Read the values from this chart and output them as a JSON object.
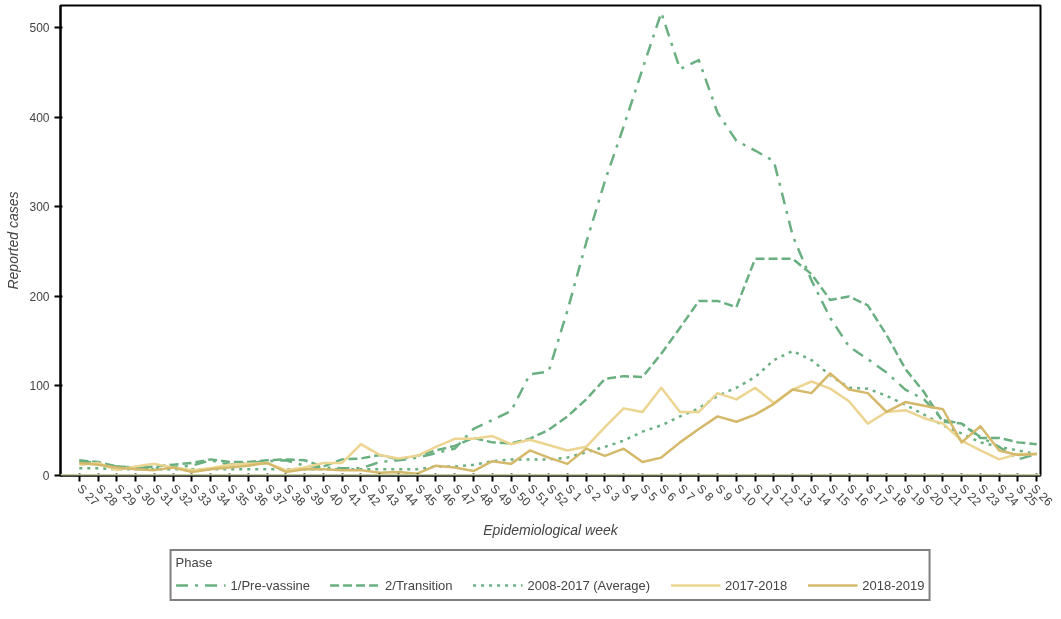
{
  "chart_data": {
    "type": "line",
    "xlabel": "Epidemiological week",
    "ylabel": "Reported cases",
    "legend_title": "Phase",
    "legend": "bottom",
    "grid": false,
    "marker": "none",
    "categories": [
      "S 27",
      "S 28",
      "S 29",
      "S 30",
      "S 31",
      "S 32",
      "S 33",
      "S 34",
      "S 35",
      "S 36",
      "S 37",
      "S 38",
      "S 39",
      "S 40",
      "S 41",
      "S 42",
      "S 43",
      "S 44",
      "S 45",
      "S 46",
      "S 47",
      "S 48",
      "S 49",
      "S 50",
      "S 51",
      "S 52",
      "S 1",
      "S 2",
      "S 3",
      "S 4",
      "S 5",
      "S 6",
      "S 7",
      "S 8",
      "S 9",
      "S 10",
      "S 11",
      "S 12",
      "S 13",
      "S 14",
      "S 15",
      "S 16",
      "S 17",
      "S 18",
      "S 19",
      "S 20",
      "S 21",
      "S 22",
      "S 23",
      "S 24",
      "S 25",
      "S 26"
    ],
    "ylim": [
      0,
      525
    ],
    "yticks": [
      0,
      100,
      200,
      300,
      400,
      500
    ],
    "ref_lines": [
      {
        "axis": "y",
        "value": 0,
        "label": null,
        "color": "#c5cfa4"
      }
    ],
    "series": [
      {
        "name": "1/Pre-vassine",
        "color": "#6aaf80",
        "line_style": "dashdot",
        "values": [
          16,
          14,
          10,
          9,
          8,
          9,
          11,
          17,
          12,
          14,
          16,
          17,
          11,
          9,
          8,
          8,
          15,
          17,
          20,
          25,
          30,
          52,
          62,
          72,
          113,
          116,
          184,
          260,
          329,
          390,
          454,
          517,
          454,
          464,
          405,
          374,
          363,
          351,
          268,
          218,
          176,
          144,
          130,
          115,
          96,
          85,
          62,
          58,
          43,
          32,
          18,
          24
        ]
      },
      {
        "name": "2/Transition",
        "color": "#6aaf80",
        "line_style": "dashed",
        "values": [
          17,
          15,
          10,
          9,
          10,
          12,
          14,
          18,
          15,
          15,
          17,
          18,
          17,
          10,
          18,
          19,
          23,
          18,
          22,
          28,
          33,
          42,
          37,
          36,
          41,
          51,
          66,
          85,
          108,
          111,
          110,
          136,
          165,
          195,
          195,
          188,
          242,
          242,
          242,
          225,
          196,
          200,
          190,
          157,
          119,
          93,
          60,
          58,
          42,
          42,
          37,
          35
        ]
      },
      {
        "name": "2008-2017 (Average)",
        "color": "#6aaf80",
        "line_style": "dotted",
        "values": [
          8,
          8,
          7,
          7,
          7,
          7,
          7,
          7,
          7,
          7,
          7,
          7,
          7,
          7,
          7,
          7,
          7,
          7,
          7,
          10,
          10,
          12,
          16,
          18,
          18,
          18,
          20,
          26,
          32,
          39,
          49,
          56,
          66,
          75,
          89,
          98,
          110,
          129,
          139,
          129,
          112,
          98,
          97,
          89,
          79,
          68,
          56,
          47,
          37,
          32,
          28,
          24
        ]
      },
      {
        "name": "2017-2018",
        "color": "#ecd491",
        "line_style": "solid",
        "values": [
          12,
          14,
          6,
          10,
          13,
          9,
          6,
          8,
          12,
          13,
          14,
          6,
          9,
          14,
          14,
          35,
          23,
          19,
          22,
          32,
          41,
          41,
          44,
          35,
          40,
          34,
          28,
          32,
          54,
          75,
          71,
          98,
          71,
          71,
          92,
          85,
          98,
          81,
          96,
          105,
          97,
          83,
          58,
          71,
          73,
          64,
          58,
          39,
          28,
          18,
          24,
          24
        ]
      },
      {
        "name": "2018-2019",
        "color": "#d4b96a",
        "line_style": "solid",
        "values": [
          14,
          12,
          9,
          7,
          6,
          9,
          4,
          7,
          9,
          11,
          14,
          4,
          7,
          7,
          6,
          6,
          3,
          4,
          2,
          11,
          9,
          5,
          16,
          13,
          28,
          20,
          13,
          30,
          22,
          30,
          15,
          20,
          37,
          52,
          66,
          60,
          68,
          80,
          96,
          92,
          114,
          96,
          92,
          71,
          82,
          78,
          74,
          37,
          55,
          28,
          23,
          24
        ]
      }
    ]
  }
}
